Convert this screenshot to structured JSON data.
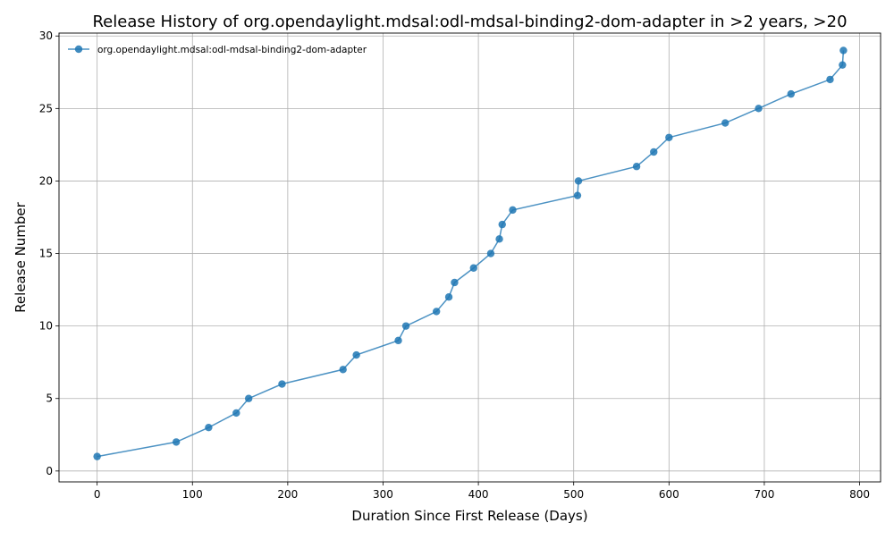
{
  "chart_data": {
    "type": "line",
    "title": "Release History of org.opendaylight.mdsal:odl-mdsal-binding2-dom-adapter in >2 years, >20",
    "xlabel": "Duration Since First Release (Days)",
    "ylabel": "Release Number",
    "xlim": [
      -40,
      822
    ],
    "ylim": [
      -0.75,
      30.2
    ],
    "xticks": [
      0,
      100,
      200,
      300,
      400,
      500,
      600,
      700,
      800
    ],
    "yticks": [
      0,
      5,
      10,
      15,
      20,
      25,
      30
    ],
    "grid": true,
    "legend_position": "top-left",
    "color": "#1f77b4",
    "series": [
      {
        "name": "org.opendaylight.mdsal:odl-mdsal-binding2-dom-adapter",
        "x": [
          0,
          83,
          117,
          146,
          159,
          194,
          258,
          272,
          316,
          324,
          356,
          369,
          375,
          395,
          413,
          422,
          425,
          436,
          504,
          505,
          566,
          584,
          600,
          659,
          694,
          728,
          769,
          782,
          783
        ],
        "y": [
          1,
          2,
          3,
          4,
          5,
          6,
          7,
          8,
          9,
          10,
          11,
          12,
          13,
          14,
          15,
          16,
          17,
          18,
          19,
          20,
          21,
          22,
          23,
          24,
          25,
          26,
          27,
          28,
          29
        ]
      }
    ]
  }
}
